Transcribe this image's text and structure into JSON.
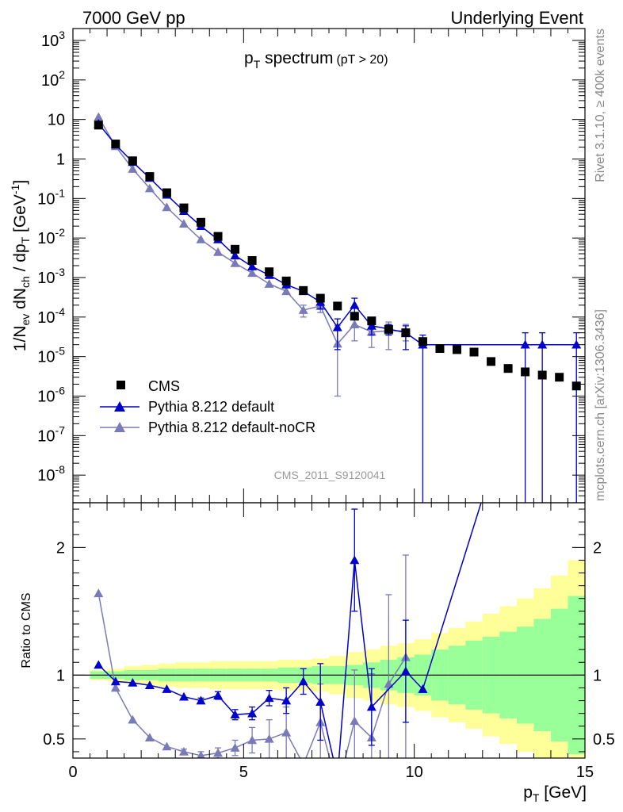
{
  "header": {
    "left": "7000 GeV pp",
    "right": "Underlying Event"
  },
  "side_labels": {
    "rivet": "Rivet 3.1.10, ≥ 400k events",
    "mcplots": "mcplots.cern.ch [arXiv:1306.3436]"
  },
  "chart_data": [
    {
      "type": "scatter",
      "panel": "main",
      "title_main": "p",
      "title_sub": "T",
      "title_rest": " spectrum",
      "title_extra": "(pT > 20)",
      "watermark": "CMS_2011_S9120041",
      "ylabel": "1/N_ev dN_ch / dp_T [GeV^-1]",
      "ylabel_parts": {
        "a": "1/N",
        "a_sub": "ev",
        "b": " dN",
        "b_sub": "ch",
        "c": " / dp",
        "c_sub": "T",
        "d": " [GeV",
        "d_sup": "-1",
        "e": "]"
      },
      "yscale": "log",
      "xlim": [
        0,
        15
      ],
      "ylim": [
        2e-09,
        2000
      ],
      "y_ticks": [
        {
          "v": 1e-08,
          "m": "10",
          "e": "-8"
        },
        {
          "v": 1e-07,
          "m": "10",
          "e": "-7"
        },
        {
          "v": 1e-06,
          "m": "10",
          "e": "-6"
        },
        {
          "v": 1e-05,
          "m": "10",
          "e": "-5"
        },
        {
          "v": 0.0001,
          "m": "10",
          "e": "-4"
        },
        {
          "v": 0.001,
          "m": "10",
          "e": "-3"
        },
        {
          "v": 0.01,
          "m": "10",
          "e": "-2"
        },
        {
          "v": 0.1,
          "m": "10",
          "e": "-1"
        },
        {
          "v": 1,
          "m": "1",
          "e": ""
        },
        {
          "v": 10,
          "m": "10",
          "e": ""
        },
        {
          "v": 100,
          "m": "10",
          "e": "2"
        },
        {
          "v": 1000,
          "m": "10",
          "e": "3"
        }
      ],
      "legend": {
        "position": "bottom-left"
      },
      "series": [
        {
          "name": "CMS",
          "marker": "square",
          "color": "#000000",
          "x": [
            0.75,
            1.25,
            1.75,
            2.25,
            2.75,
            3.25,
            3.75,
            4.25,
            4.75,
            5.25,
            5.75,
            6.25,
            6.75,
            7.25,
            7.75,
            8.25,
            8.75,
            9.25,
            9.75,
            10.25,
            10.75,
            11.25,
            11.75,
            12.25,
            12.75,
            13.25,
            13.75,
            14.25,
            14.75
          ],
          "y": [
            7.2,
            2.4,
            0.9,
            0.36,
            0.14,
            0.058,
            0.025,
            0.011,
            0.0052,
            0.0027,
            0.0014,
            0.00082,
            0.00047,
            0.0003,
            0.00019,
            0.000105,
            8e-05,
            4.9e-05,
            4e-05,
            2.4e-05,
            1.6e-05,
            1.5e-05,
            1.3e-05,
            7.5e-06,
            5e-06,
            4.1e-06,
            3.4e-06,
            3e-06,
            1.8e-06
          ]
        },
        {
          "name": "Pythia 8.212 default",
          "marker": "triangle",
          "color": "#0000cc",
          "x": [
            0.75,
            1.25,
            1.75,
            2.25,
            2.75,
            3.25,
            3.75,
            4.25,
            4.75,
            5.25,
            5.75,
            6.25,
            6.75,
            7.25,
            7.75,
            8.25,
            8.75,
            9.25,
            9.75,
            10.25,
            13.25,
            13.75,
            14.75
          ],
          "y": [
            7.8,
            2.3,
            0.84,
            0.33,
            0.124,
            0.048,
            0.02,
            0.0092,
            0.0036,
            0.0019,
            0.00115,
            0.00066,
            0.00045,
            0.00024,
            5.5e-05,
            0.0002,
            6e-05,
            5e-05,
            4e-05,
            2e-05,
            2e-05,
            2e-05,
            2e-05
          ],
          "err_hi": [
            null,
            null,
            null,
            null,
            null,
            null,
            null,
            null,
            null,
            null,
            null,
            null,
            null,
            0.0001,
            3.5e-05,
            0.0001,
            2.5e-05,
            1.5e-05,
            2e-05,
            1.5e-05,
            2e-05,
            2e-05,
            2e-05
          ],
          "err_lo": [
            null,
            null,
            null,
            null,
            null,
            null,
            null,
            null,
            null,
            null,
            null,
            null,
            null,
            8e-05,
            4e-05,
            7e-05,
            2.5e-05,
            1.5e-05,
            2.5e-05,
            2e-05,
            2e-05,
            2e-05,
            2e-05
          ]
        },
        {
          "name": "Pythia 8.212 default-noCR",
          "marker": "triangle",
          "color": "#7a7ab8",
          "x": [
            0.75,
            1.25,
            1.75,
            2.25,
            2.75,
            3.25,
            3.75,
            4.25,
            4.75,
            5.25,
            5.75,
            6.25,
            6.75,
            7.25,
            7.75,
            8.25,
            8.75,
            9.25,
            9.75
          ],
          "y": [
            11.5,
            2.1,
            0.56,
            0.18,
            0.06,
            0.023,
            0.0092,
            0.0044,
            0.0023,
            0.0013,
            0.00069,
            0.00045,
            0.00015,
            0.00019,
            2.1e-05,
            6.5e-05,
            4.2e-05,
            4.5e-05,
            4.5e-05
          ],
          "err_hi": [
            null,
            null,
            null,
            null,
            null,
            null,
            null,
            null,
            null,
            null,
            null,
            null,
            5e-05,
            8e-05,
            4e-05,
            3e-05,
            2e-05,
            3e-05,
            2e-05
          ],
          "err_lo": [
            null,
            null,
            null,
            null,
            null,
            null,
            null,
            null,
            null,
            null,
            null,
            null,
            5e-05,
            6e-05,
            2e-05,
            4e-05,
            2.5e-05,
            3e-05,
            2e-05
          ]
        }
      ]
    },
    {
      "type": "line",
      "panel": "ratio",
      "ylabel": "Ratio to CMS",
      "xlabel": "p_T [GeV]",
      "xlabel_parts": {
        "a": "p",
        "a_sub": "T",
        "b": " [GeV]"
      },
      "xlim": [
        0,
        15
      ],
      "ylim": [
        0.35,
        2.35
      ],
      "x_ticks": [
        0,
        5,
        10,
        15
      ],
      "y_ticks": [
        0.5,
        1,
        2
      ],
      "reference": 1,
      "band_colors": {
        "stat": "#99ff99",
        "total": "#ffff99"
      },
      "bins": [
        0.5,
        1,
        1.5,
        2,
        2.5,
        3,
        3.5,
        4,
        4.5,
        5,
        5.5,
        6,
        6.5,
        7,
        7.5,
        8,
        8.5,
        9,
        9.5,
        10,
        10.5,
        11,
        11.5,
        12,
        12.5,
        13,
        13.5,
        14,
        14.5,
        15
      ],
      "band_stat": [
        0.03,
        0.03,
        0.04,
        0.04,
        0.05,
        0.05,
        0.05,
        0.05,
        0.05,
        0.05,
        0.05,
        0.06,
        0.06,
        0.07,
        0.07,
        0.08,
        0.1,
        0.12,
        0.14,
        0.16,
        0.2,
        0.23,
        0.27,
        0.3,
        0.34,
        0.38,
        0.44,
        0.52,
        0.62
      ],
      "band_total": [
        0.04,
        0.05,
        0.07,
        0.08,
        0.09,
        0.1,
        0.1,
        0.11,
        0.11,
        0.11,
        0.11,
        0.12,
        0.12,
        0.13,
        0.15,
        0.18,
        0.2,
        0.23,
        0.25,
        0.28,
        0.33,
        0.37,
        0.42,
        0.48,
        0.54,
        0.6,
        0.68,
        0.78,
        0.9
      ],
      "series": [
        {
          "name": "Pythia 8.212 default",
          "color": "#0000cc",
          "x": [
            0.75,
            1.25,
            1.75,
            2.25,
            2.75,
            3.25,
            3.75,
            4.25,
            4.75,
            5.25,
            5.75,
            6.25,
            6.75,
            7.25,
            7.75,
            8.25,
            8.75,
            9.75,
            10.25,
            12.25
          ],
          "y": [
            1.08,
            0.95,
            0.94,
            0.92,
            0.89,
            0.83,
            0.8,
            0.84,
            0.69,
            0.7,
            0.82,
            0.8,
            0.95,
            0.79,
            0.2,
            1.9,
            0.75,
            1.03,
            0.89,
            2.6
          ],
          "err_hi": [
            0,
            0,
            0,
            0,
            0,
            0,
            0.02,
            0.03,
            0.04,
            0.05,
            0.06,
            0.1,
            0.1,
            0.3,
            0,
            0.4,
            0.3,
            0.4,
            0,
            0
          ],
          "err_lo": [
            0,
            0,
            0,
            0,
            0,
            0,
            0.02,
            0.03,
            0.04,
            0.05,
            0.06,
            0.1,
            0.1,
            0.3,
            0,
            0.4,
            0.3,
            0.4,
            0,
            0
          ]
        },
        {
          "name": "Pythia 8.212 default-noCR",
          "color": "#7a7ab8",
          "x": [
            0.75,
            1.25,
            1.75,
            2.25,
            2.75,
            3.25,
            3.75,
            4.25,
            4.75,
            5.25,
            5.75,
            6.25,
            6.75,
            7.25,
            7.75,
            8.25,
            8.75,
            9.25,
            9.75
          ],
          "y": [
            1.64,
            0.9,
            0.65,
            0.51,
            0.44,
            0.4,
            0.37,
            0.39,
            0.43,
            0.49,
            0.5,
            0.55,
            0.3,
            0.63,
            0.11,
            0.64,
            0.51,
            0.93,
            1.14
          ],
          "err_hi": [
            0,
            0,
            0,
            0,
            0,
            0.02,
            0.03,
            0.04,
            0.06,
            0.1,
            0.15,
            0.2,
            0,
            0.3,
            0,
            0.4,
            0.5,
            0.7,
            0.8
          ],
          "err_lo": [
            0,
            0,
            0,
            0,
            0,
            0.02,
            0.03,
            0.04,
            0.06,
            0.1,
            0.15,
            0.2,
            0,
            0.3,
            0,
            0.4,
            0.5,
            0.7,
            0.8
          ]
        }
      ]
    }
  ]
}
